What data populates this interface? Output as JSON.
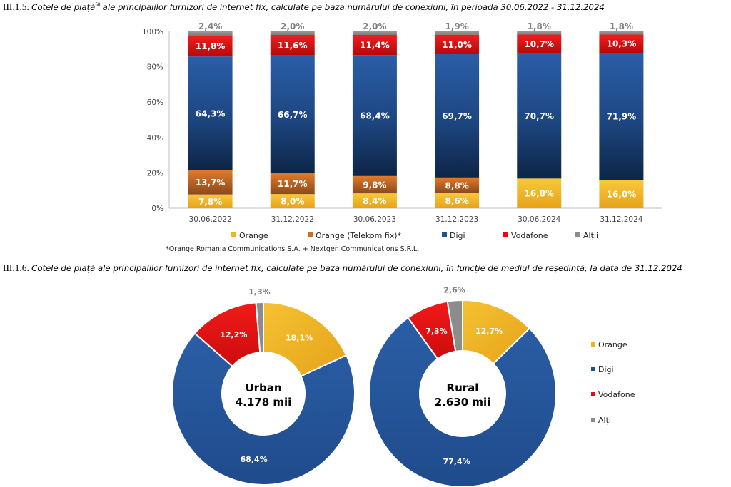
{
  "figures": {
    "f1": {
      "number": "III.1.5.",
      "caption_a": "Cotele de piață",
      "footnote_ref": "50",
      "caption_b": "ale principalilor furnizori de internet fix, calculate pe baza numărului de conexiuni, în perioada 30.06.2022 - 31.12.2024"
    },
    "f2": {
      "number": "III.1.6.",
      "caption": "Cotele de piață ale principalilor furnizori de internet fix, calculate pe baza numărului de conexiuni, în funcție de mediul de reședință, la data de 31.12.2024"
    }
  },
  "colors": {
    "orange": "#f0b323",
    "orange_telekom": "#d06d26",
    "digi": "#224f90",
    "vodafone": "#e20b13",
    "altii": "#8c8c8c"
  },
  "chart_data": [
    {
      "type": "bar",
      "stacked": true,
      "title": "",
      "categories": [
        "30.06.2022",
        "31.12.2022",
        "30.06.2023",
        "31.12.2023",
        "30.06.2024",
        "31.12.2024"
      ],
      "series": [
        {
          "name": "Orange",
          "values": [
            7.8,
            8.0,
            8.4,
            8.6,
            16.8,
            16.0
          ],
          "labels": [
            "7,8%",
            "8,0%",
            "8,4%",
            "8,6%",
            "16,8%",
            "16,0%"
          ]
        },
        {
          "name": "Orange (Telekom fix)*",
          "values": [
            13.7,
            11.7,
            9.8,
            8.8,
            0,
            0
          ],
          "labels": [
            "13,7%",
            "11,7%",
            "9,8%",
            "8,8%",
            "",
            ""
          ]
        },
        {
          "name": "Digi",
          "values": [
            64.3,
            66.7,
            68.4,
            69.7,
            70.7,
            71.9
          ],
          "labels": [
            "64,3%",
            "66,7%",
            "68,4%",
            "69,7%",
            "70,7%",
            "71,9%"
          ]
        },
        {
          "name": "Vodafone",
          "values": [
            11.8,
            11.6,
            11.4,
            11.0,
            10.7,
            10.3
          ],
          "labels": [
            "11,8%",
            "11,6%",
            "11,4%",
            "11,0%",
            "10,7%",
            "10,3%"
          ]
        },
        {
          "name": "Alții",
          "values": [
            2.4,
            2.0,
            2.0,
            1.9,
            1.8,
            1.8
          ],
          "labels": [
            "2,4%",
            "2,0%",
            "2,0%",
            "1,9%",
            "1,8%",
            "1,8%"
          ]
        }
      ],
      "y_ticks": [
        "0%",
        "20%",
        "40%",
        "60%",
        "80%",
        "100%"
      ],
      "ylim": [
        0,
        100
      ],
      "grid": false,
      "legend_position": "bottom",
      "footnote": "*Orange Romania Communications S.A. + Nextgen Communications S.R.L."
    },
    {
      "type": "pie",
      "donut": true,
      "center_label": [
        "Urban",
        "4.178 mii"
      ],
      "slices": [
        {
          "name": "Orange",
          "value": 18.1,
          "label": "18,1%"
        },
        {
          "name": "Digi",
          "value": 68.4,
          "label": "68,4%"
        },
        {
          "name": "Vodafone",
          "value": 12.2,
          "label": "12,2%"
        },
        {
          "name": "Alții",
          "value": 1.3,
          "label": "1,3%"
        }
      ]
    },
    {
      "type": "pie",
      "donut": true,
      "center_label": [
        "Rural",
        "2.630 mii"
      ],
      "slices": [
        {
          "name": "Orange",
          "value": 12.7,
          "label": "12,7%"
        },
        {
          "name": "Digi",
          "value": 77.4,
          "label": "77,4%"
        },
        {
          "name": "Vodafone",
          "value": 7.3,
          "label": "7,3%"
        },
        {
          "name": "Alții",
          "value": 2.6,
          "label": "2,6%"
        }
      ],
      "legend": [
        "Orange",
        "Digi",
        "Vodafone",
        "Alții"
      ],
      "legend_position": "right"
    }
  ]
}
